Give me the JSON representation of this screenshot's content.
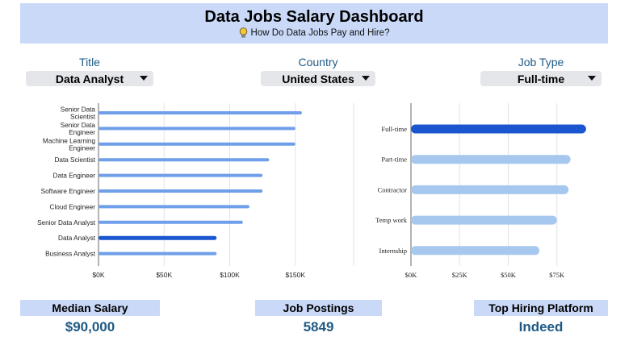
{
  "header": {
    "title": "Data Jobs Salary Dashboard",
    "subtitle": "How Do Data Jobs Pay and Hire?"
  },
  "filters": {
    "title": {
      "label": "Title",
      "value": "Data Analyst"
    },
    "country": {
      "label": "Country",
      "value": "United States"
    },
    "job_type": {
      "label": "Job Type",
      "value": "Full-time"
    }
  },
  "kpis": {
    "median_salary": {
      "label": "Median Salary",
      "value": "$90,000"
    },
    "job_postings": {
      "label": "Job Postings",
      "value": "5849"
    },
    "top_platform": {
      "label": "Top Hiring Platform",
      "value": "Indeed"
    }
  },
  "colors": {
    "highlight": "#1a56d0",
    "bar": "#6f9fe9",
    "bar_light": "#a7c8ee",
    "header_bg": "#c9d9f7",
    "accent_text": "#1f5a85"
  },
  "chart_data": [
    {
      "type": "bar",
      "orientation": "horizontal",
      "categories": [
        "Senior Data Scientist",
        "Senior Data Engineer",
        "Machine Learning Engineer",
        "Data Scientist",
        "Data Engineer",
        "Software Engineer",
        "Cloud Engineer",
        "Senior Data Analyst",
        "Data Analyst",
        "Business Analyst"
      ],
      "values": [
        155000,
        150000,
        150000,
        130000,
        125000,
        125000,
        115000,
        110000,
        90000,
        90000
      ],
      "highlight": "Data Analyst",
      "xlim": [
        0,
        160000
      ],
      "xticks": [
        "$0K",
        "$50K",
        "$100K",
        "$150K"
      ],
      "xtick_values": [
        0,
        50000,
        100000,
        150000
      ],
      "grid": true
    },
    {
      "type": "bar",
      "orientation": "horizontal",
      "categories": [
        "Full-time",
        "Part-time",
        "Contractor",
        "Temp work",
        "Internship"
      ],
      "values": [
        90000,
        82000,
        81000,
        75000,
        66000
      ],
      "highlight": "Full-time",
      "xlim": [
        0,
        100000
      ],
      "xticks": [
        "$0K",
        "$25K",
        "$50K",
        "$75K"
      ],
      "xtick_values": [
        0,
        25000,
        50000,
        75000
      ],
      "grid": true
    }
  ]
}
